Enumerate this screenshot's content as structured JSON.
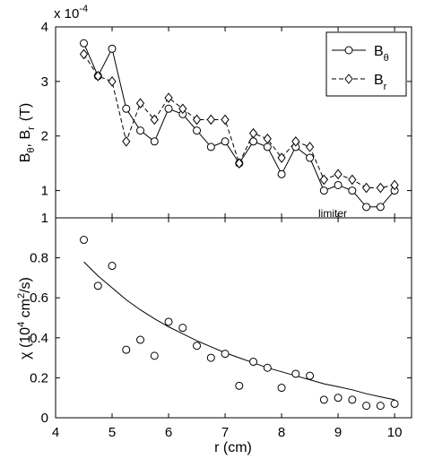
{
  "chart_data": [
    {
      "type": "line",
      "ylabel_main": "B",
      "ylabel_sub1": "θ",
      "ylabel_mid": ",  B",
      "ylabel_sub2": "r",
      "ylabel_unit": "(T)",
      "yexp_prefix": "x 10",
      "yexp_power": "-4",
      "xlim": [
        4,
        10.3
      ],
      "ylim": [
        0.5,
        4
      ],
      "yticks": [
        1,
        2,
        3,
        4
      ],
      "xticks": [
        4,
        5,
        6,
        7,
        8,
        9,
        10
      ],
      "annotation": "limiter",
      "legend_placement": "top-right",
      "x": [
        4.5,
        4.75,
        5.0,
        5.25,
        5.5,
        5.75,
        6.0,
        6.25,
        6.5,
        6.75,
        7.0,
        7.25,
        7.5,
        7.75,
        8.0,
        8.25,
        8.5,
        8.75,
        9.0,
        9.25,
        9.5,
        9.75,
        10.0
      ],
      "series": [
        {
          "name_main": "B",
          "name_sub": "θ",
          "marker": "circle",
          "line": "solid",
          "values": [
            3.7,
            3.1,
            3.6,
            2.5,
            2.1,
            1.9,
            2.5,
            2.4,
            2.1,
            1.8,
            1.9,
            1.5,
            1.9,
            1.8,
            1.3,
            1.8,
            1.6,
            1.0,
            1.1,
            1.0,
            0.7,
            0.7,
            1.0
          ]
        },
        {
          "name_main": "B",
          "name_sub": "r",
          "marker": "diamond",
          "line": "dashed",
          "values": [
            3.5,
            3.1,
            3.0,
            1.9,
            2.6,
            2.3,
            2.7,
            2.5,
            2.3,
            2.3,
            2.3,
            1.5,
            2.05,
            1.95,
            1.6,
            1.9,
            1.8,
            1.2,
            1.3,
            1.2,
            1.05,
            1.05,
            1.1
          ]
        }
      ]
    },
    {
      "type": "scatter",
      "ylabel_main": "χ  (10",
      "ylabel_pow1": "4",
      "ylabel_mid": " cm",
      "ylabel_pow2": "2",
      "ylabel_end": "/s)",
      "xlabel": "r  (cm)",
      "xlim": [
        4,
        10.3
      ],
      "ylim": [
        0,
        1
      ],
      "yticks": [
        0,
        0.2,
        0.4,
        0.6,
        0.8,
        1
      ],
      "xticks": [
        4,
        5,
        6,
        7,
        8,
        9,
        10
      ],
      "points": {
        "x": [
          4.5,
          4.75,
          5.0,
          5.25,
          5.5,
          5.75,
          6.0,
          6.25,
          6.5,
          6.75,
          7.0,
          7.25,
          7.5,
          7.75,
          8.0,
          8.25,
          8.5,
          8.75,
          9.0,
          9.25,
          9.5,
          9.75,
          10.0
        ],
        "y": [
          0.89,
          0.66,
          0.76,
          0.34,
          0.39,
          0.31,
          0.48,
          0.45,
          0.36,
          0.3,
          0.32,
          0.16,
          0.28,
          0.25,
          0.15,
          0.22,
          0.21,
          0.09,
          0.1,
          0.09,
          0.06,
          0.06,
          0.07
        ]
      },
      "fit": {
        "x": [
          4.5,
          4.75,
          5.0,
          5.25,
          5.5,
          5.75,
          6.0,
          6.25,
          6.5,
          6.75,
          7.0,
          7.25,
          7.5,
          7.75,
          8.0,
          8.25,
          8.5,
          8.75,
          9.0,
          9.25,
          9.5,
          9.75,
          10.0
        ],
        "y": [
          0.78,
          0.71,
          0.65,
          0.59,
          0.54,
          0.495,
          0.455,
          0.42,
          0.385,
          0.355,
          0.325,
          0.3,
          0.275,
          0.25,
          0.23,
          0.21,
          0.19,
          0.17,
          0.155,
          0.14,
          0.12,
          0.105,
          0.09
        ]
      }
    }
  ]
}
